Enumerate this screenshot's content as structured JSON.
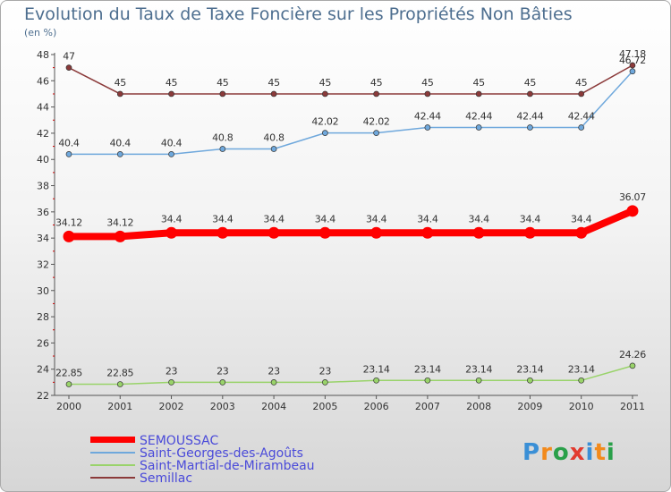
{
  "title": "Evolution du Taux de Taxe Foncière sur les Propriétés Non Bâties",
  "subtitle": "(en %)",
  "logo": {
    "text": "Proxiti",
    "colors": [
      "#3a8fd6",
      "#f28a1c",
      "#2aa04a",
      "#e23a2e",
      "#3a8fd6",
      "#f28a1c",
      "#2aa04a"
    ]
  },
  "chart_data": {
    "type": "line",
    "title": "Evolution du Taux de Taxe Foncière sur les Propriétés Non Bâties",
    "ylabel": "(en %)",
    "xlabel": "",
    "ylim": [
      22,
      48
    ],
    "yticks": [
      22,
      24,
      26,
      28,
      30,
      32,
      34,
      36,
      38,
      40,
      42,
      44,
      46,
      48
    ],
    "x": [
      "2000",
      "2001",
      "2002",
      "2003",
      "2004",
      "2005",
      "2006",
      "2007",
      "2008",
      "2009",
      "2010",
      "2011"
    ],
    "grid": false,
    "legend": "bottom-left",
    "series": [
      {
        "name": "SEMOUSSAC",
        "color": "#ff0000",
        "emphasis": true,
        "values": [
          34.12,
          34.12,
          34.4,
          34.4,
          34.4,
          34.4,
          34.4,
          34.4,
          34.4,
          34.4,
          34.4,
          36.07
        ],
        "labels": [
          "34.12",
          "34.12",
          "34.4",
          "34.4",
          "34.4",
          "34.4",
          "34.4",
          "34.4",
          "34.4",
          "34.4",
          "34.4",
          "36.07"
        ]
      },
      {
        "name": "Saint-Georges-des-Agoûts",
        "color": "#6fa8dc",
        "values": [
          40.4,
          40.4,
          40.4,
          40.8,
          40.8,
          42.02,
          42.02,
          42.44,
          42.44,
          42.44,
          42.44,
          46.72
        ],
        "labels": [
          "40.4",
          "40.4",
          "40.4",
          "40.8",
          "40.8",
          "42.02",
          "42.02",
          "42.44",
          "42.44",
          "42.44",
          "42.44",
          "46.72"
        ]
      },
      {
        "name": "Saint-Martial-de-Mirambeau",
        "color": "#99d36a",
        "values": [
          22.85,
          22.85,
          23,
          23,
          23,
          23,
          23.14,
          23.14,
          23.14,
          23.14,
          23.14,
          24.26
        ],
        "labels": [
          "22.85",
          "22.85",
          "23",
          "23",
          "23",
          "23",
          "23.14",
          "23.14",
          "23.14",
          "23.14",
          "23.14",
          "24.26"
        ]
      },
      {
        "name": "Semillac",
        "color": "#8b3a3a",
        "values": [
          47,
          45,
          45,
          45,
          45,
          45,
          45,
          45,
          45,
          45,
          45,
          47.18
        ],
        "labels": [
          "47",
          "45",
          "45",
          "45",
          "45",
          "45",
          "45",
          "45",
          "45",
          "45",
          "45",
          "47.18"
        ]
      }
    ]
  }
}
